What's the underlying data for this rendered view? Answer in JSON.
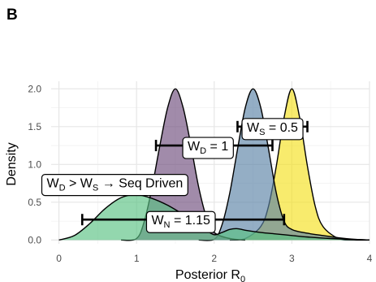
{
  "panel_label": "B",
  "chart_data": {
    "type": "area",
    "xlabel": {
      "main": "Posterior R",
      "sub": "0"
    },
    "ylabel": "Density",
    "xlim": [
      -0.1,
      4.0
    ],
    "ylim": [
      -0.05,
      2.1
    ],
    "x_ticks": [
      0,
      1,
      2,
      3,
      4
    ],
    "x_tick_labels": [
      "0",
      "1",
      "2",
      "3",
      "4"
    ],
    "y_ticks": [
      0.0,
      0.5,
      1.0,
      1.5,
      2.0
    ],
    "y_tick_labels": [
      "0.0",
      "0.5",
      "1.0",
      "1.5",
      "2.0"
    ],
    "grid": true,
    "legend": "none",
    "series": [
      {
        "color": "#f5e11e",
        "x": [
          2.2,
          2.4,
          2.6,
          2.7,
          2.8,
          2.9,
          3.0,
          3.1,
          3.2,
          3.3,
          3.4,
          3.6,
          3.8,
          4.0
        ],
        "values": [
          0.0,
          0.02,
          0.18,
          0.45,
          0.98,
          1.62,
          2.0,
          1.62,
          0.98,
          0.45,
          0.18,
          0.02,
          0.0,
          0.0
        ]
      },
      {
        "color": "#5a82a6",
        "x": [
          1.8,
          2.0,
          2.1,
          2.2,
          2.3,
          2.4,
          2.5,
          2.6,
          2.7,
          2.8,
          2.9,
          3.0,
          3.2,
          3.4,
          3.6,
          3.8,
          4.0
        ],
        "values": [
          0.0,
          0.01,
          0.2,
          0.62,
          1.2,
          1.75,
          2.0,
          1.75,
          1.2,
          0.62,
          0.25,
          0.14,
          0.09,
          0.06,
          0.03,
          0.01,
          0.0
        ]
      },
      {
        "color": "#6e4d7d",
        "x": [
          0.8,
          1.0,
          1.1,
          1.2,
          1.3,
          1.4,
          1.5,
          1.6,
          1.7,
          1.8,
          1.9,
          2.0,
          2.2,
          2.4
        ],
        "values": [
          0.0,
          0.02,
          0.25,
          0.7,
          1.25,
          1.75,
          2.0,
          1.75,
          1.25,
          0.7,
          0.3,
          0.1,
          0.02,
          0.0
        ]
      },
      {
        "color": "#59c283",
        "x": [
          0.0,
          0.2,
          0.4,
          0.6,
          0.8,
          1.0,
          1.2,
          1.4,
          1.6,
          1.8,
          1.9,
          2.0,
          2.1,
          2.2,
          2.3,
          2.4,
          2.6,
          2.8,
          3.0,
          3.2,
          3.5,
          4.0
        ],
        "values": [
          0.0,
          0.06,
          0.22,
          0.42,
          0.56,
          0.6,
          0.55,
          0.46,
          0.34,
          0.22,
          0.13,
          0.07,
          0.1,
          0.14,
          0.15,
          0.13,
          0.1,
          0.08,
          0.06,
          0.04,
          0.02,
          0.0
        ]
      }
    ],
    "intervals": [
      {
        "x0": 1.25,
        "x1": 2.75,
        "y": 1.25
      },
      {
        "x0": 2.3,
        "x1": 3.2,
        "y": 1.5
      },
      {
        "x0": 0.3,
        "x1": 2.9,
        "y": 0.27
      }
    ],
    "annotations": [
      {
        "main": "W",
        "sub": "D",
        "rest": " = 1",
        "x": 1.92,
        "y": 1.25
      },
      {
        "main": "W",
        "sub": "S",
        "rest": " = 0.5",
        "x": 2.75,
        "y": 1.5
      },
      {
        "main": "W",
        "sub": "N",
        "rest": " = 1.15",
        "x": 1.57,
        "y": 0.27
      },
      {
        "main": "W",
        "sub": "D",
        "rest": " > W",
        "sub2": "S",
        "rest2": " → Seq Driven",
        "x": 0.72,
        "y": 0.76
      }
    ]
  }
}
